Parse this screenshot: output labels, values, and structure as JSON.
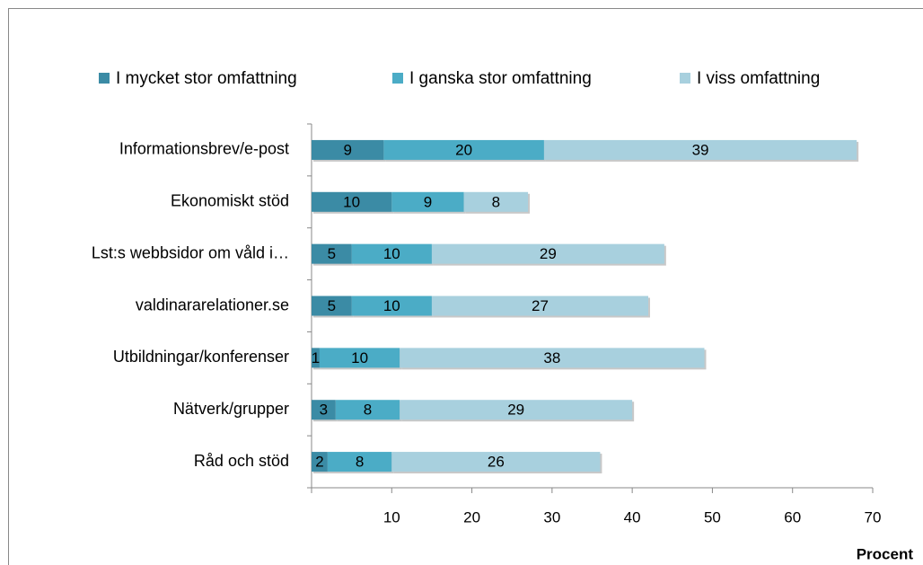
{
  "chart_data": {
    "type": "stacked-bar-horizontal",
    "categories": [
      "Informationsbrev/e-post",
      "Ekonomiskt stöd",
      "Lst:s webbsidor om våld i…",
      "valdinararelationer.se",
      "Utbildningar/konferenser",
      "Nätverk/grupper",
      "Råd och stöd"
    ],
    "series": [
      {
        "name": "I mycket stor omfattning",
        "color": "#3b8ba5",
        "values": [
          9,
          10,
          5,
          5,
          1,
          3,
          2
        ]
      },
      {
        "name": "I ganska stor omfattning",
        "color": "#4bacc6",
        "values": [
          20,
          9,
          10,
          10,
          10,
          8,
          8
        ]
      },
      {
        "name": "I viss omfattning",
        "color": "#a8d0de",
        "values": [
          39,
          8,
          29,
          27,
          38,
          29,
          26
        ]
      }
    ],
    "xlim": [
      0,
      70
    ],
    "xticks": [
      10,
      20,
      30,
      40,
      50,
      60,
      70
    ],
    "x_label": "Procent",
    "legend": "top"
  }
}
